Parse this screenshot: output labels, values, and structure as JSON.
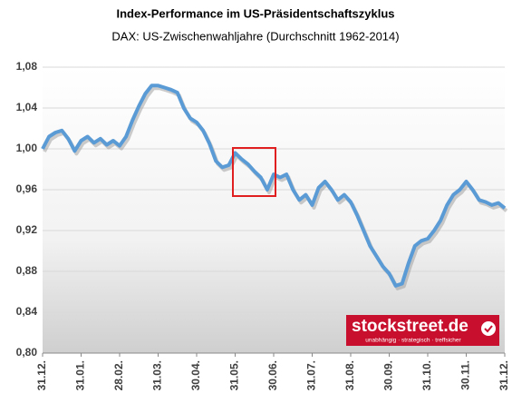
{
  "chart_data": {
    "type": "line",
    "title": "Index-Performance im US-Präsidentschaftszyklus",
    "subtitle": "DAX: US-Zwischenwahljahre (Durchschnitt 1962-2014)",
    "categories": [
      "31.12.",
      null,
      null,
      null,
      null,
      null,
      "31.01.",
      null,
      null,
      null,
      null,
      null,
      "28.02.",
      null,
      null,
      null,
      null,
      null,
      "31.03.",
      null,
      null,
      null,
      null,
      null,
      "30.04.",
      null,
      null,
      null,
      null,
      null,
      "31.05.",
      null,
      null,
      null,
      null,
      null,
      "30.06.",
      null,
      null,
      null,
      null,
      null,
      "31.07.",
      null,
      null,
      null,
      null,
      null,
      "31.08.",
      null,
      null,
      null,
      null,
      null,
      "30.09.",
      null,
      null,
      null,
      null,
      null,
      "31.10.",
      null,
      null,
      null,
      null,
      null,
      "30.11.",
      null,
      null,
      null,
      null,
      null,
      "31.12."
    ],
    "series": [
      {
        "name": "DAX",
        "color": "#5b9bd5",
        "values": [
          1.0,
          1.012,
          1.016,
          1.018,
          1.01,
          0.998,
          1.008,
          1.012,
          1.006,
          1.01,
          1.004,
          1.008,
          1.003,
          1.012,
          1.028,
          1.042,
          1.054,
          1.062,
          1.062,
          1.06,
          1.058,
          1.055,
          1.04,
          1.03,
          1.026,
          1.018,
          1.005,
          0.988,
          0.982,
          0.984,
          0.996,
          0.99,
          0.985,
          0.978,
          0.972,
          0.96,
          0.975,
          0.972,
          0.975,
          0.96,
          0.95,
          0.955,
          0.945,
          0.962,
          0.968,
          0.96,
          0.95,
          0.955,
          0.948,
          0.935,
          0.92,
          0.905,
          0.895,
          0.885,
          0.878,
          0.866,
          0.868,
          0.888,
          0.905,
          0.91,
          0.912,
          0.92,
          0.93,
          0.945,
          0.955,
          0.96,
          0.968,
          0.96,
          0.95,
          0.948,
          0.945,
          0.947,
          0.942
        ]
      }
    ],
    "ylim": [
      0.8,
      1.08
    ],
    "yticks": [
      {
        "value": 0.8,
        "label": "0,80"
      },
      {
        "value": 0.84,
        "label": "0,84"
      },
      {
        "value": 0.88,
        "label": "0,88"
      },
      {
        "value": 0.92,
        "label": "0,92"
      },
      {
        "value": 0.96,
        "label": "0,96"
      },
      {
        "value": 1.0,
        "label": "1,00"
      },
      {
        "value": 1.04,
        "label": "1,04"
      },
      {
        "value": 1.08,
        "label": "1,08"
      }
    ],
    "grid": true,
    "logo": {
      "name": "stockstreet.de",
      "tagline": "unabhängig · strategisch · treffsicher"
    }
  }
}
